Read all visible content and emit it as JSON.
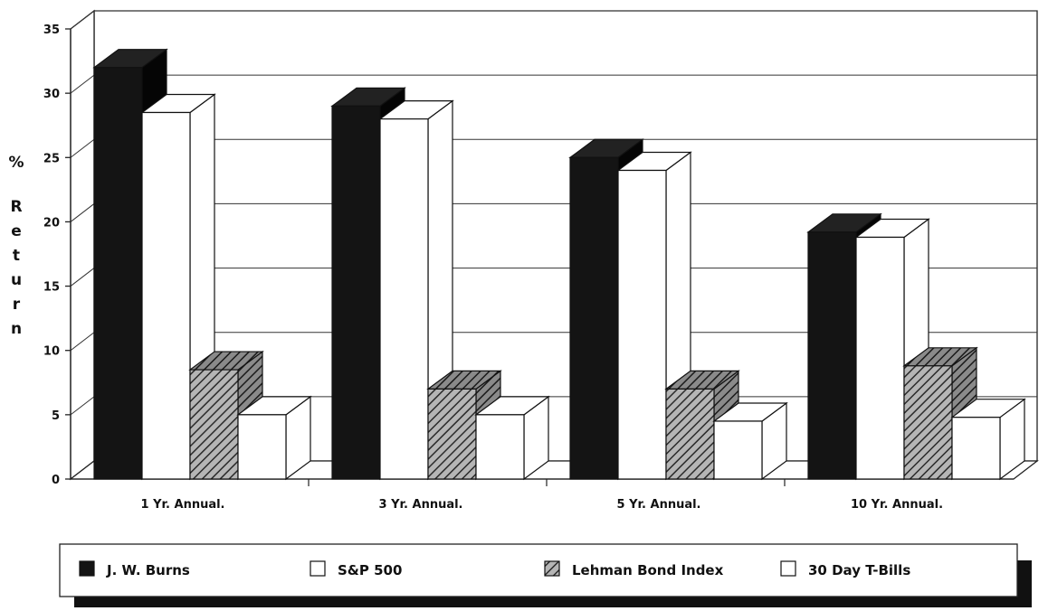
{
  "chart_data": {
    "type": "bar",
    "ylabel_chars": [
      "%",
      "R",
      "e",
      "t",
      "u",
      "r",
      "n"
    ],
    "categories": [
      "1 Yr. Annual.",
      "3 Yr. Annual.",
      "5 Yr. Annual.",
      "10 Yr. Annual."
    ],
    "y_ticks": [
      "0",
      "5",
      "10",
      "15",
      "20",
      "25",
      "30",
      "35"
    ],
    "ylim": [
      0,
      35
    ],
    "grid": true,
    "legend_position": "bottom",
    "series": [
      {
        "name": "J. W. Burns",
        "values": [
          32,
          29,
          25,
          19.2
        ],
        "fill": "#141414",
        "pattern": "solid"
      },
      {
        "name": "S&P 500",
        "values": [
          28.5,
          28,
          24,
          18.8
        ],
        "fill": "#ffffff",
        "pattern": "solid"
      },
      {
        "name": "Lehman Bond Index",
        "values": [
          8.5,
          7,
          7,
          8.8
        ],
        "fill": "#9a9a9a",
        "pattern": "hatch"
      },
      {
        "name": "30 Day T-Bills",
        "values": [
          5,
          5,
          4.5,
          4.8
        ],
        "fill": "#ffffff",
        "pattern": "solid"
      }
    ]
  }
}
